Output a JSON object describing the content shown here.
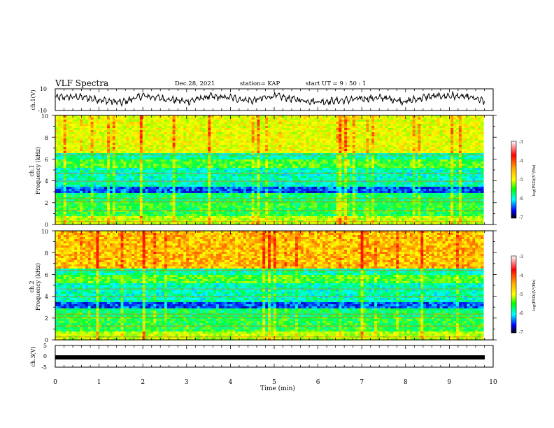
{
  "header": {
    "title": "VLF Spectra",
    "date": "Dec.28, 2021",
    "station": "station= KAP",
    "start": "start  UT  =   9 : 50 : 1"
  },
  "chart_data": [
    {
      "type": "line",
      "panel": "ch1-waveform",
      "ylabel": "ch.1(V)",
      "ylim": [
        -10,
        10
      ],
      "yticks": [
        "10",
        "-10"
      ],
      "xlim": [
        0,
        10
      ],
      "x": [
        0.0,
        0.5,
        1.0,
        1.5,
        2.0,
        2.5,
        3.0,
        3.5,
        4.0,
        4.5,
        5.0,
        5.5,
        6.0,
        6.5,
        7.0,
        7.5,
        8.0,
        8.5,
        9.0,
        9.5,
        9.8
      ],
      "values": [
        2,
        3,
        0,
        -3,
        4,
        1,
        -2,
        3,
        2,
        -1,
        4,
        0,
        -2,
        -1,
        1,
        2,
        -2,
        3,
        4,
        2,
        -2
      ]
    },
    {
      "type": "heatmap",
      "panel": "ch1-spectrogram",
      "ylabel": "ch.1\nFrequency (kHz)",
      "ylabel_line1": "ch.1",
      "ylabel_line2": "Frequency (kHz)",
      "ylim": [
        0,
        10
      ],
      "yticks": [
        "0",
        "2",
        "4",
        "6",
        "8",
        "10"
      ],
      "xlim": [
        0,
        10
      ],
      "colorbar": {
        "label": "log(PSD)(V²/Hz)",
        "range": [
          -7,
          -3
        ],
        "ticks": [
          "-3",
          "-4",
          "-5",
          "-6",
          "-7"
        ]
      }
    },
    {
      "type": "heatmap",
      "panel": "ch2-spectrogram",
      "ylabel_line1": "ch.2",
      "ylabel_line2": "Frequency (kHz)",
      "ylim": [
        0,
        10
      ],
      "yticks": [
        "0",
        "2",
        "4",
        "6",
        "8",
        "10"
      ],
      "xlim": [
        0,
        10
      ],
      "colorbar": {
        "label": "log(PSD)(V²/Hz)",
        "range": [
          -7,
          -3
        ],
        "ticks": [
          "-3",
          "-4",
          "-5",
          "-6",
          "-7"
        ]
      }
    },
    {
      "type": "line",
      "panel": "ch3-waveform",
      "ylabel": "ch.3(V)",
      "ylim": [
        -5,
        5
      ],
      "yticks": [
        "5",
        "0",
        "-5"
      ],
      "xlim": [
        0,
        10
      ],
      "x": [
        0,
        9.8
      ],
      "values": [
        -1.2,
        -1.2
      ]
    }
  ],
  "xaxis": {
    "label": "Time  (min)",
    "ticks": [
      "0",
      "1",
      "2",
      "3",
      "4",
      "5",
      "6",
      "7",
      "8",
      "9",
      "10"
    ]
  },
  "colors": {
    "axis": "#000000",
    "colormap": [
      "#ff0000",
      "#ffa500",
      "#ffff00",
      "#00ff00",
      "#00ffff",
      "#0000ff",
      "#000000"
    ]
  }
}
